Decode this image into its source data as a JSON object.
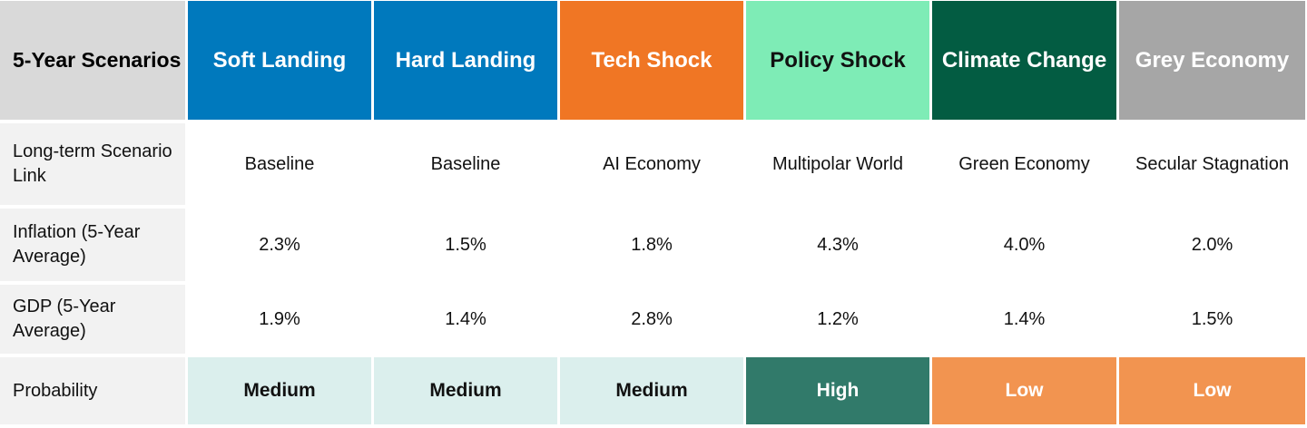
{
  "corner_label": "5-Year Scenarios",
  "scenarios": [
    {
      "name": "Soft Landing",
      "bg": "#0079bd",
      "fg": "#ffffff"
    },
    {
      "name": "Hard Landing",
      "bg": "#0079bd",
      "fg": "#ffffff"
    },
    {
      "name": "Tech Shock",
      "bg": "#f07624",
      "fg": "#ffffff"
    },
    {
      "name": "Policy Shock",
      "bg": "#7eecb6",
      "fg": "#111111"
    },
    {
      "name": "Climate Change",
      "bg": "#035c42",
      "fg": "#ffffff"
    },
    {
      "name": "Grey Economy",
      "bg": "#a6a6a6",
      "fg": "#ffffff"
    }
  ],
  "rows": [
    {
      "label": "Long-term Scenario Link",
      "values": [
        "Baseline",
        "Baseline",
        "AI Economy",
        "Multipolar World",
        "Green Economy",
        "Secular Stagnation"
      ]
    },
    {
      "label": "Inflation (5-Year Average)",
      "values": [
        "2.3%",
        "1.5%",
        "1.8%",
        "4.3%",
        "4.0%",
        "2.0%"
      ]
    },
    {
      "label": "GDP (5-Year Average)",
      "values": [
        "1.9%",
        "1.4%",
        "2.8%",
        "1.2%",
        "1.4%",
        "1.5%"
      ]
    }
  ],
  "probability": {
    "label": "Probability",
    "values": [
      "Medium",
      "Medium",
      "Medium",
      "High",
      "Low",
      "Low"
    ]
  },
  "probability_colors": {
    "Medium": {
      "bg": "#dbefed",
      "fg": "#111111"
    },
    "High": {
      "bg": "#317a6a",
      "fg": "#ffffff"
    },
    "Low": {
      "bg": "#f29450",
      "fg": "#ffffff"
    }
  }
}
